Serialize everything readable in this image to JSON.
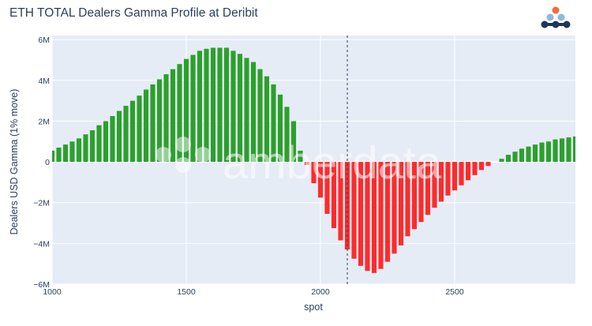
{
  "title": "ETH TOTAL Dealers Gamma Profile at Deribit",
  "brand": {
    "name": "amberdata",
    "logo": "amberdata-logo-icon"
  },
  "chart_data": {
    "type": "bar",
    "title": "ETH TOTAL Dealers Gamma Profile at Deribit",
    "xlabel": "spot",
    "ylabel": "Dealers USD Gamma (1% move)",
    "xlim": [
      1000,
      2950
    ],
    "ylim": [
      -6000000,
      6200000
    ],
    "x_ticks": [
      1000,
      1500,
      2000,
      2500
    ],
    "x_tick_labels": [
      "1000",
      "1500",
      "2000",
      "2500"
    ],
    "y_ticks": [
      -6000000,
      -4000000,
      -2000000,
      0,
      2000000,
      4000000,
      6000000
    ],
    "y_tick_labels": [
      "−6M",
      "−4M",
      "−2M",
      "0",
      "2M",
      "4M",
      "6M"
    ],
    "spot_line": 2100,
    "grid": true,
    "positive_color": "#2ca02c",
    "negative_color": "#ff2b2b",
    "background_color": "#e5ecf6",
    "bar_width": 17,
    "x": [
      1000,
      1025,
      1050,
      1075,
      1100,
      1125,
      1150,
      1175,
      1200,
      1225,
      1250,
      1275,
      1300,
      1325,
      1350,
      1375,
      1400,
      1425,
      1450,
      1475,
      1500,
      1525,
      1550,
      1575,
      1600,
      1625,
      1650,
      1675,
      1700,
      1725,
      1750,
      1775,
      1800,
      1825,
      1850,
      1875,
      1900,
      1925,
      1950,
      1975,
      2000,
      2025,
      2050,
      2075,
      2100,
      2125,
      2150,
      2175,
      2200,
      2225,
      2250,
      2275,
      2300,
      2325,
      2350,
      2375,
      2400,
      2425,
      2450,
      2475,
      2500,
      2525,
      2550,
      2575,
      2600,
      2625,
      2650,
      2675,
      2700,
      2725,
      2750,
      2775,
      2800,
      2825,
      2850,
      2875,
      2900,
      2925,
      2950
    ],
    "values": [
      550000,
      700000,
      850000,
      1000000,
      1150000,
      1350000,
      1550000,
      1800000,
      2000000,
      2250000,
      2500000,
      2750000,
      3000000,
      3250000,
      3550000,
      3800000,
      4050000,
      4300000,
      4550000,
      4800000,
      5050000,
      5250000,
      5450000,
      5550000,
      5600000,
      5600000,
      5600000,
      5450000,
      5300000,
      5100000,
      4900000,
      4550000,
      4200000,
      3800000,
      3300000,
      2700000,
      2000000,
      550000,
      -150000,
      -1050000,
      -1750000,
      -2550000,
      -3250000,
      -3850000,
      -4300000,
      -4750000,
      -5100000,
      -5350000,
      -5450000,
      -5250000,
      -4900000,
      -4500000,
      -4100000,
      -3650000,
      -3300000,
      -2950000,
      -2600000,
      -2250000,
      -1950000,
      -1650000,
      -1400000,
      -1150000,
      -900000,
      -650000,
      -400000,
      -200000,
      0,
      150000,
      350000,
      500000,
      650000,
      750000,
      850000,
      950000,
      1000000,
      1100000,
      1150000,
      1200000,
      1250000
    ]
  }
}
